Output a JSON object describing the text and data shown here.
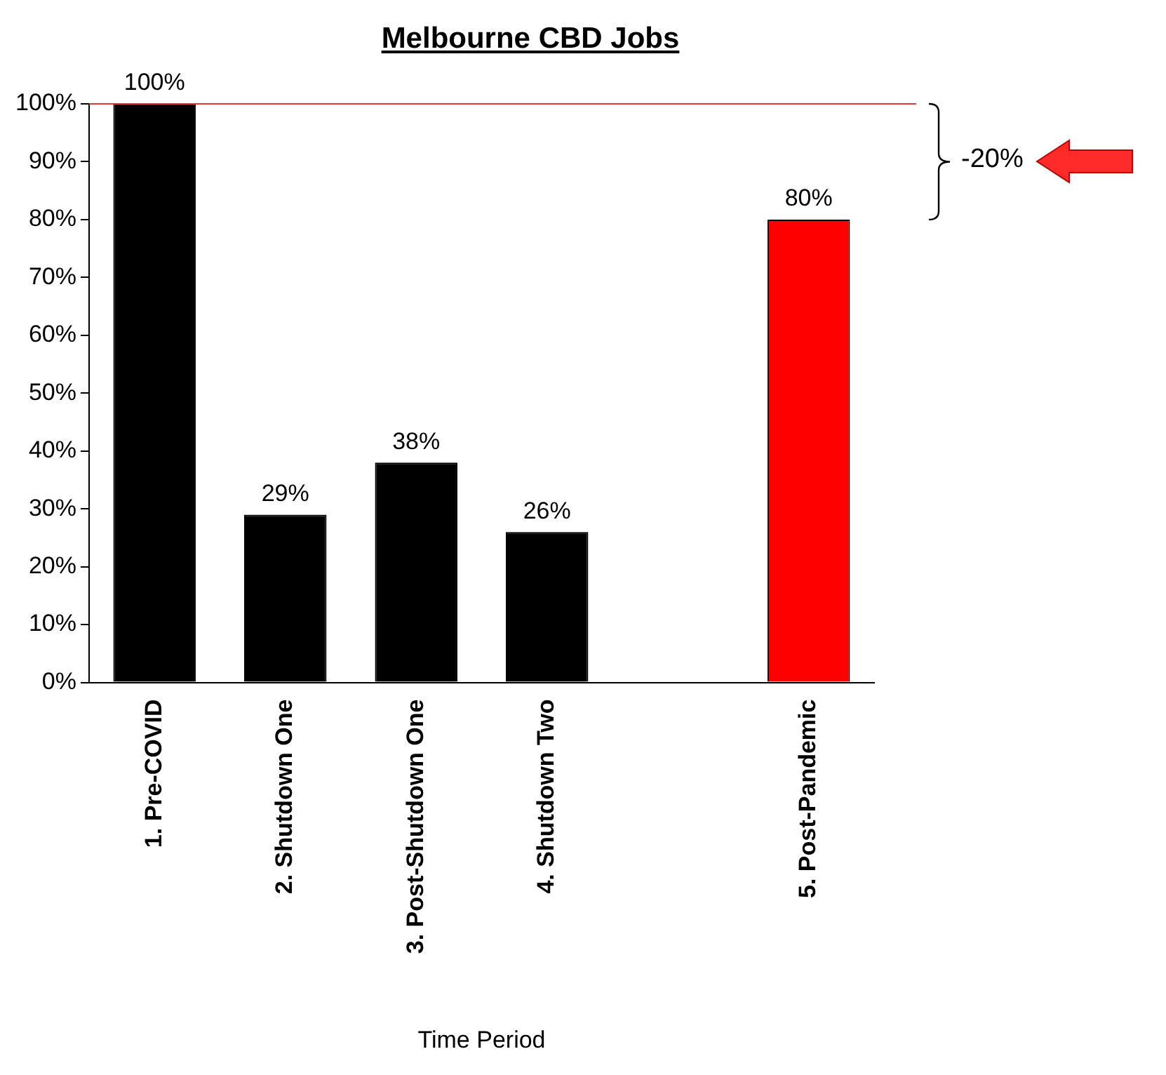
{
  "chart_data": {
    "type": "bar",
    "title": "Melbourne CBD Jobs",
    "xlabel": "Time Period",
    "categories": [
      "1. Pre-COVID",
      "2. Shutdown One",
      "3. Post-Shutdown One",
      "4. Shutdown Two",
      null,
      "5. Post-Pandemic"
    ],
    "values": [
      100,
      29,
      38,
      26,
      null,
      80
    ],
    "colors": [
      "#000000",
      "#000000",
      "#000000",
      "#000000",
      "#000000",
      "#ff0000"
    ],
    "value_labels": [
      "100%",
      "29%",
      "38%",
      "26%",
      null,
      "80%"
    ],
    "ylim": [
      0,
      100
    ],
    "yticks": [
      {
        "value": 0,
        "label": "0%"
      },
      {
        "value": 10,
        "label": "10%"
      },
      {
        "value": 20,
        "label": "20%"
      },
      {
        "value": 30,
        "label": "30%"
      },
      {
        "value": 40,
        "label": "40%"
      },
      {
        "value": 50,
        "label": "50%"
      },
      {
        "value": 60,
        "label": "60%"
      },
      {
        "value": 70,
        "label": "70%"
      },
      {
        "value": 80,
        "label": "80%"
      },
      {
        "value": 90,
        "label": "90%"
      },
      {
        "value": 100,
        "label": "100%"
      }
    ],
    "ref_lines": [
      {
        "axis": "y",
        "value": 100,
        "color": "#e8323c"
      }
    ],
    "annotations": [
      "-20%"
    ],
    "grid": false,
    "legend": false
  }
}
